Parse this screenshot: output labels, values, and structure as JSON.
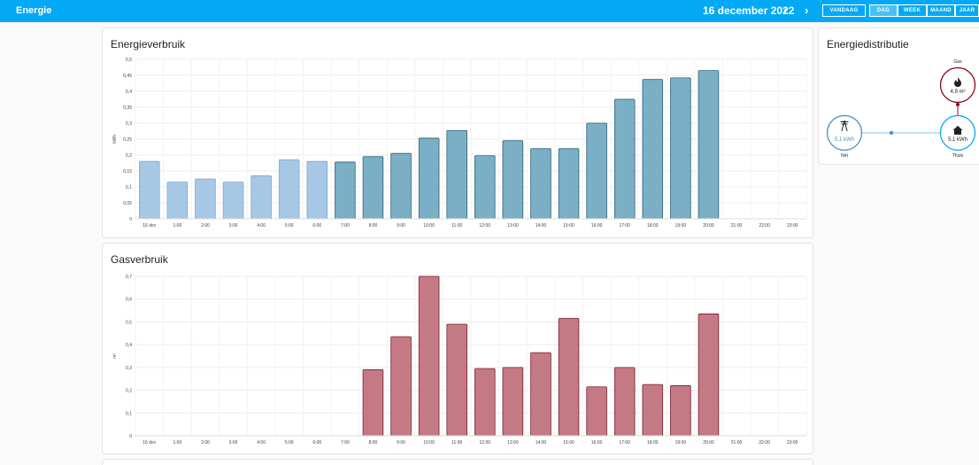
{
  "app": {
    "title": "Energie"
  },
  "date": {
    "label": "16 december 2022",
    "prev_icon": "chevron-left-icon",
    "next_icon": "chevron-right-icon"
  },
  "period_buttons": [
    {
      "label": "VANDAAG",
      "active": false
    },
    {
      "label": "DAG",
      "active": true
    },
    {
      "label": "WEEK",
      "active": false
    },
    {
      "label": "MAAND",
      "active": false
    },
    {
      "label": "JAAR",
      "active": false
    }
  ],
  "energy_card": {
    "title": "Energieverbruik"
  },
  "gas_card": {
    "title": "Gasverbruik"
  },
  "distribution": {
    "title": "Energiedistributie",
    "gas": {
      "label": "Gas",
      "value": "4,9 m³",
      "icon": "flame-icon"
    },
    "grid": {
      "label": "Net",
      "value": "5,1 kWh",
      "icon": "transmission-tower-icon"
    },
    "home": {
      "label": "Thuis",
      "value": "5,1 kWh",
      "icon": "home-icon"
    },
    "colors": {
      "gas": "#8e021b",
      "grid": "#488fc2",
      "home": "#03a9f4"
    }
  },
  "chart_data": [
    {
      "type": "bar",
      "ylabel": "kWh",
      "ylim": [
        0,
        0.5
      ],
      "yticks": [
        "0",
        "0,05",
        "0,1",
        "0,15",
        "0,2",
        "0,25",
        "0,3",
        "0,35",
        "0,4",
        "0,45",
        "0,5"
      ],
      "categories": [
        "16 dec",
        "1:00",
        "2:00",
        "3:00",
        "4:00",
        "5:00",
        "6:00",
        "7:00",
        "8:00",
        "9:00",
        "10:00",
        "11:00",
        "12:00",
        "13:00",
        "14:00",
        "15:00",
        "16:00",
        "17:00",
        "18:00",
        "19:00",
        "20:00",
        "21:00",
        "22:00",
        "23:00"
      ],
      "values": [
        0.18,
        0.115,
        0.125,
        0.115,
        0.135,
        0.185,
        0.18,
        0.178,
        0.195,
        0.205,
        0.253,
        0.277,
        0.198,
        0.245,
        0.22,
        0.22,
        0.3,
        0.375,
        0.437,
        0.442,
        0.465,
        null,
        null,
        null
      ],
      "colors": {
        "low_fill": "#a6c8e4",
        "low_stroke": "#7ba9d1",
        "high_fill": "#7aafc5",
        "high_stroke": "#30637a"
      },
      "grid": true
    },
    {
      "type": "bar",
      "ylabel": "m³",
      "ylim": [
        0,
        0.7
      ],
      "yticks": [
        "0",
        "0,1",
        "0,2",
        "0,3",
        "0,4",
        "0,5",
        "0,6",
        "0,7"
      ],
      "categories": [
        "16 dec",
        "1:00",
        "2:00",
        "3:00",
        "4:00",
        "5:00",
        "6:00",
        "7:00",
        "8:00",
        "9:00",
        "10:00",
        "11:00",
        "12:00",
        "13:00",
        "14:00",
        "15:00",
        "16:00",
        "17:00",
        "18:00",
        "19:00",
        "20:00",
        "21:00",
        "22:00",
        "23:00"
      ],
      "values": [
        null,
        null,
        null,
        null,
        null,
        null,
        null,
        null,
        0.29,
        0.435,
        0.7,
        0.49,
        0.295,
        0.3,
        0.365,
        0.515,
        0.215,
        0.3,
        0.225,
        0.22,
        0.535,
        null,
        null,
        null
      ],
      "colors": {
        "fill": "#c47a85",
        "stroke": "#7d1e2f"
      },
      "grid": true
    }
  ]
}
